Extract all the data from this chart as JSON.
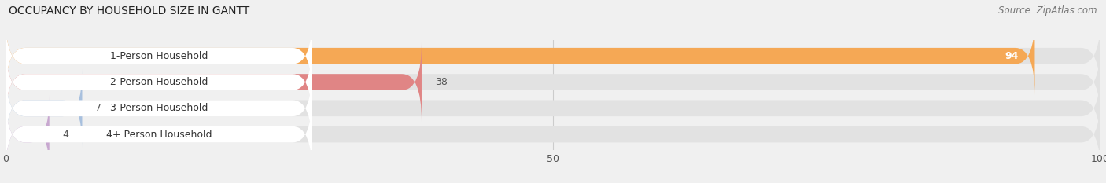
{
  "title": "OCCUPANCY BY HOUSEHOLD SIZE IN GANTT",
  "source": "Source: ZipAtlas.com",
  "categories": [
    "1-Person Household",
    "2-Person Household",
    "3-Person Household",
    "4+ Person Household"
  ],
  "values": [
    94,
    38,
    7,
    4
  ],
  "bar_colors": [
    "#F5A855",
    "#E08585",
    "#A8C0DE",
    "#C8A8D0"
  ],
  "xlim": [
    0,
    100
  ],
  "xticks": [
    0,
    50,
    100
  ],
  "background_color": "#f0f0f0",
  "bar_background_color": "#e2e2e2",
  "label_box_color": "#ffffff",
  "title_fontsize": 10,
  "source_fontsize": 8.5,
  "label_fontsize": 9,
  "value_fontsize": 9,
  "bar_height": 0.62,
  "value_color_inside": "#ffffff",
  "value_color_outside": "#555555"
}
